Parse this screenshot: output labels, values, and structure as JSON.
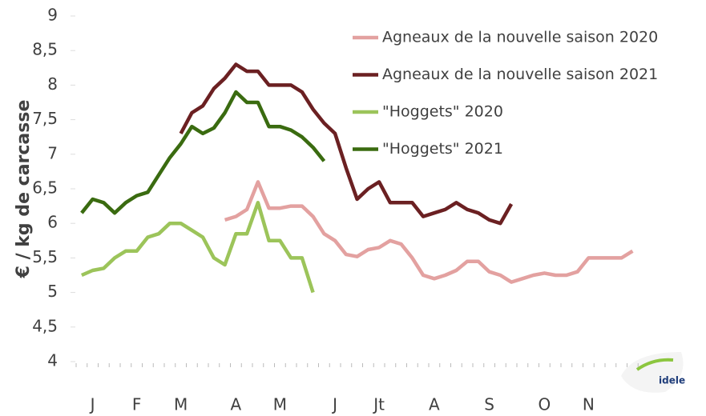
{
  "chart_data": {
    "type": "line",
    "y_label": "€ / kg de carcasse",
    "categories": [
      null,
      "J",
      null,
      null,
      null,
      "F",
      null,
      null,
      null,
      "M",
      null,
      null,
      null,
      null,
      "A",
      null,
      null,
      null,
      "M",
      null,
      null,
      null,
      null,
      "J",
      null,
      null,
      null,
      "Jt",
      null,
      null,
      null,
      null,
      "A",
      null,
      null,
      null,
      null,
      "S",
      null,
      null,
      null,
      null,
      "O",
      null,
      null,
      null,
      "N",
      null,
      null,
      null,
      null,
      null
    ],
    "ylim": [
      4,
      9
    ],
    "yticks": [
      4,
      {
        "value": 4.5,
        "label": "4,5"
      },
      5,
      {
        "value": 5.5,
        "label": "5,5"
      },
      6,
      {
        "value": 6.5,
        "label": "6,5"
      },
      7,
      {
        "value": 7.5,
        "label": "7,5"
      },
      8,
      {
        "value": 8.5,
        "label": "8,5"
      },
      9
    ],
    "legend": "top-right",
    "series": [
      {
        "name": "Agneaux de la nouvelle saison 2020",
        "color": "#e3a1a0",
        "values": [
          null,
          null,
          null,
          null,
          null,
          null,
          null,
          null,
          null,
          null,
          null,
          null,
          null,
          6.05,
          6.1,
          6.2,
          6.6,
          6.22,
          6.22,
          6.25,
          6.25,
          6.1,
          5.85,
          5.75,
          5.55,
          5.52,
          5.62,
          5.65,
          5.75,
          5.7,
          5.5,
          5.25,
          5.2,
          5.25,
          5.32,
          5.45,
          5.45,
          5.3,
          5.25,
          5.15,
          5.2,
          5.25,
          5.28,
          5.25,
          5.25,
          5.3,
          5.5,
          5.5,
          5.5,
          5.5,
          5.6,
          null
        ]
      },
      {
        "name": "Agneaux de la nouvelle saison 2021",
        "color": "#6b2022",
        "values": [
          null,
          null,
          null,
          null,
          null,
          null,
          null,
          null,
          null,
          7.3,
          7.6,
          7.7,
          7.95,
          8.1,
          8.3,
          8.2,
          8.2,
          8.0,
          8.0,
          8.0,
          7.9,
          7.65,
          7.45,
          7.3,
          6.8,
          6.35,
          6.5,
          6.6,
          6.3,
          6.3,
          6.3,
          6.1,
          6.15,
          6.2,
          6.3,
          6.2,
          6.15,
          6.05,
          6.0,
          6.28,
          null,
          null,
          null,
          null,
          null,
          null,
          null,
          null,
          null,
          null,
          null,
          null
        ]
      },
      {
        "name": "\"Hoggets\" 2020",
        "color": "#9cc45a",
        "values": [
          5.25,
          5.32,
          5.35,
          5.5,
          5.6,
          5.6,
          5.8,
          5.85,
          6.0,
          6.0,
          5.9,
          5.8,
          5.5,
          5.4,
          5.85,
          5.85,
          6.3,
          5.75,
          5.75,
          5.5,
          5.5,
          5.0,
          null,
          null,
          null,
          null,
          null,
          null,
          null,
          null,
          null,
          null,
          null,
          null,
          null,
          null,
          null,
          null,
          null,
          null,
          null,
          null,
          null,
          null,
          null,
          null,
          null,
          null,
          null,
          null,
          null,
          null
        ]
      },
      {
        "name": "\"Hoggets\" 2021",
        "color": "#3a6b10",
        "values": [
          6.15,
          6.35,
          6.3,
          6.15,
          6.3,
          6.4,
          6.45,
          6.7,
          6.95,
          7.15,
          7.4,
          7.3,
          7.38,
          7.6,
          7.9,
          7.75,
          7.75,
          7.4,
          7.4,
          7.35,
          7.25,
          7.1,
          6.9,
          null,
          null,
          null,
          null,
          null,
          null,
          null,
          null,
          null,
          null,
          null,
          null,
          null,
          null,
          null,
          null,
          null,
          null,
          null,
          null,
          null,
          null,
          null,
          null,
          null,
          null,
          null,
          null,
          null
        ]
      }
    ]
  },
  "logo": {
    "text": "idele"
  }
}
